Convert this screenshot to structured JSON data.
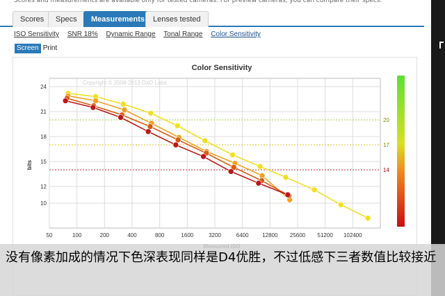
{
  "notice": "Scores and measurements are available only for tested cameras. For preview cameras, you can compare their specs.",
  "tabs": [
    {
      "label": "Scores",
      "active": false
    },
    {
      "label": "Specs",
      "active": false
    },
    {
      "label": "Measurements",
      "active": true
    },
    {
      "label": "Lenses tested",
      "active": false
    }
  ],
  "subnav": [
    {
      "label": "ISO Sensitivity",
      "active": false
    },
    {
      "label": "SNR 18%",
      "active": false
    },
    {
      "label": "Dynamic Range",
      "active": false
    },
    {
      "label": "Tonal Range",
      "active": false
    },
    {
      "label": "Color Sensitivity",
      "active": true
    }
  ],
  "view_toggle": {
    "screen": "Screen",
    "print": "Print",
    "selected": "Screen"
  },
  "chart_data": {
    "type": "line",
    "title": "Color Sensitivity",
    "xlabel": "Measured ISO",
    "ylabel": "bits",
    "watermark": "Copyright © 2008-2013 DxO Labs",
    "x_scale": "log2",
    "x_ticks": [
      "50",
      "100",
      "200",
      "400",
      "800",
      "1600",
      "3200",
      "6400",
      "12800",
      "25600",
      "51200",
      "102400"
    ],
    "xlim": [
      50,
      204800
    ],
    "y_ticks": [
      10,
      12,
      15,
      18,
      21,
      24
    ],
    "ylim": [
      7,
      25
    ],
    "grid": true,
    "reference_lines": [
      {
        "label": "20",
        "value": 20,
        "color": "#9fd23c"
      },
      {
        "label": "17",
        "value": 17,
        "color": "#d9c51c"
      },
      {
        "label": "14",
        "value": 14,
        "color": "#c92a2a"
      }
    ],
    "series": [
      {
        "color": "#f0e020",
        "points": [
          [
            80,
            23.2
          ],
          [
            160,
            22.8
          ],
          [
            320,
            21.9
          ],
          [
            640,
            20.8
          ],
          [
            1250,
            19.3
          ],
          [
            2500,
            17.5
          ],
          [
            5000,
            15.8
          ],
          [
            10000,
            14.4
          ],
          [
            19000,
            13.1
          ],
          [
            39000,
            11.6
          ],
          [
            76000,
            9.8
          ],
          [
            150000,
            8.2
          ]
        ]
      },
      {
        "color": "#f0a020",
        "points": [
          [
            80,
            22.9
          ],
          [
            160,
            22.3
          ],
          [
            330,
            21.2
          ],
          [
            650,
            19.6
          ],
          [
            1300,
            17.9
          ],
          [
            2600,
            16.2
          ],
          [
            5300,
            14.8
          ],
          [
            10500,
            13.3
          ],
          [
            21000,
            10.4
          ]
        ]
      },
      {
        "color": "#d85a10",
        "points": [
          [
            78,
            22.6
          ],
          [
            152,
            21.7
          ],
          [
            310,
            20.6
          ],
          [
            630,
            19.2
          ],
          [
            1270,
            17.6
          ],
          [
            2580,
            16.0
          ],
          [
            5150,
            14.3
          ],
          [
            10400,
            12.7
          ],
          [
            20600,
            10.9
          ]
        ]
      },
      {
        "color": "#b81818",
        "points": [
          [
            75,
            22.3
          ],
          [
            150,
            21.5
          ],
          [
            300,
            20.3
          ],
          [
            600,
            18.6
          ],
          [
            1200,
            17.0
          ],
          [
            2400,
            15.6
          ],
          [
            4800,
            13.8
          ],
          [
            9600,
            12.4
          ],
          [
            20000,
            11.0
          ]
        ]
      }
    ],
    "color_bar": {
      "top_color": "#5ce036",
      "bottom_color": "#c41010"
    }
  },
  "caption": "没有像素加成的情况下色深表现同样是D4优胜，不过低感下三者数值比较接近"
}
